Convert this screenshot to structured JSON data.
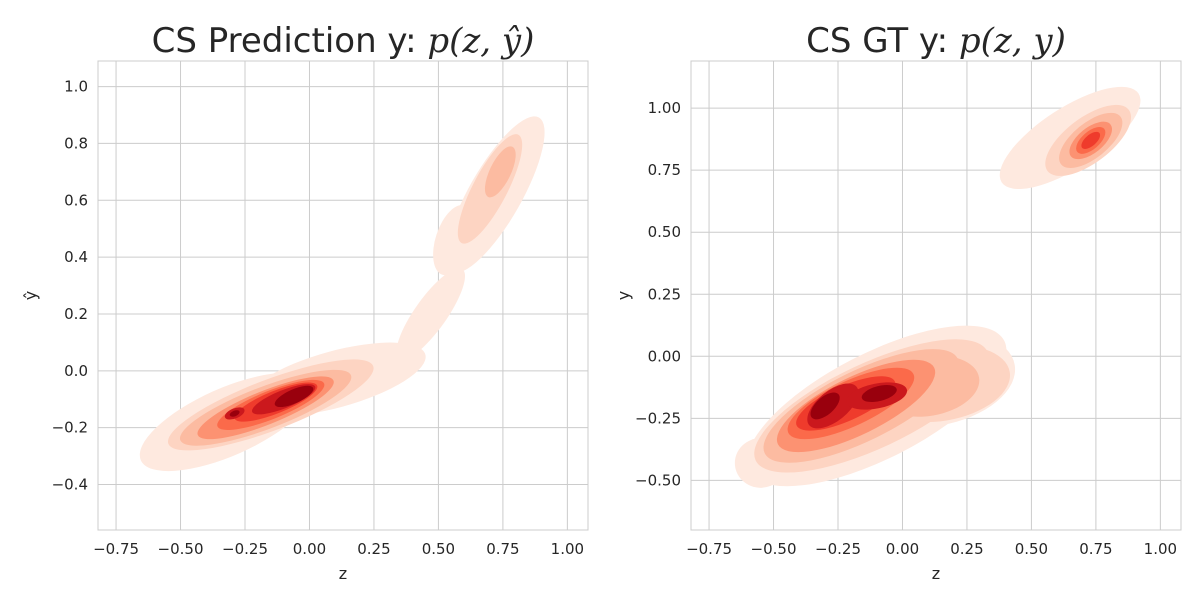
{
  "chart_data": [
    {
      "type": "kde-contour",
      "title_prefix": "CS Prediction y: ",
      "title_math_base": "p(z, y",
      "title_math_hat": "̂",
      "title_math_close": ")",
      "xlabel": "z",
      "ylabel": "ŷ",
      "xlim": [
        -0.82,
        1.08
      ],
      "ylim": [
        -0.56,
        1.09
      ],
      "xticks": [
        -0.75,
        -0.5,
        -0.25,
        0.0,
        0.25,
        0.5,
        0.75,
        1.0
      ],
      "xtick_labels": [
        "−0.75",
        "−0.50",
        "−0.25",
        "0.00",
        "0.25",
        "0.50",
        "0.75",
        "1.00"
      ],
      "yticks": [
        -0.4,
        -0.2,
        0.0,
        0.2,
        0.4,
        0.6,
        0.8,
        1.0
      ],
      "ytick_labels": [
        "−0.4",
        "−0.2",
        "0.0",
        "0.2",
        "0.4",
        "0.6",
        "0.8",
        "1.0"
      ],
      "levels": [
        {
          "name": "level-1",
          "color": "#fee9df",
          "ellipses": [
            {
              "cx": -0.32,
              "cy": -0.18,
              "rx": 0.36,
              "ry": 0.12,
              "angle": 22
            },
            {
              "cx": 0.1,
              "cy": -0.03,
              "rx": 0.36,
              "ry": 0.1,
              "angle": 14
            },
            {
              "cx": 0.47,
              "cy": 0.2,
              "rx": 0.2,
              "ry": 0.06,
              "angle": 52
            },
            {
              "cx": 0.72,
              "cy": 0.62,
              "rx": 0.32,
              "ry": 0.1,
              "angle": 58
            },
            {
              "cx": 0.56,
              "cy": 0.46,
              "rx": 0.13,
              "ry": 0.07,
              "angle": 70
            }
          ]
        },
        {
          "name": "level-2",
          "color": "#fdd4c2",
          "ellipses": [
            {
              "cx": -0.15,
              "cy": -0.12,
              "rx": 0.42,
              "ry": 0.09,
              "angle": 19
            },
            {
              "cx": 0.7,
              "cy": 0.64,
              "rx": 0.22,
              "ry": 0.065,
              "angle": 60
            }
          ]
        },
        {
          "name": "level-3",
          "color": "#fcbba1",
          "ellipses": [
            {
              "cx": -0.17,
              "cy": -0.13,
              "rx": 0.35,
              "ry": 0.075,
              "angle": 19
            },
            {
              "cx": 0.74,
              "cy": 0.7,
              "rx": 0.1,
              "ry": 0.04,
              "angle": 62
            }
          ]
        },
        {
          "name": "level-4",
          "color": "#fc9272",
          "ellipses": [
            {
              "cx": -0.17,
              "cy": -0.13,
              "rx": 0.28,
              "ry": 0.06,
              "angle": 20
            }
          ]
        },
        {
          "name": "level-5",
          "color": "#fb6a4a",
          "ellipses": [
            {
              "cx": -0.15,
              "cy": -0.12,
              "rx": 0.22,
              "ry": 0.05,
              "angle": 20
            }
          ]
        },
        {
          "name": "level-6",
          "color": "#ef3b2c",
          "ellipses": [
            {
              "cx": -0.13,
              "cy": -0.11,
              "rx": 0.17,
              "ry": 0.04,
              "angle": 20
            }
          ]
        },
        {
          "name": "level-7",
          "color": "#cb181d",
          "ellipses": [
            {
              "cx": -0.1,
              "cy": -0.1,
              "rx": 0.13,
              "ry": 0.032,
              "angle": 20
            },
            {
              "cx": -0.29,
              "cy": -0.15,
              "rx": 0.04,
              "ry": 0.018,
              "angle": 20
            }
          ]
        },
        {
          "name": "level-8",
          "color": "#99000d",
          "ellipses": [
            {
              "cx": -0.06,
              "cy": -0.09,
              "rx": 0.08,
              "ry": 0.025,
              "angle": 22
            },
            {
              "cx": -0.29,
              "cy": -0.15,
              "rx": 0.02,
              "ry": 0.01,
              "angle": 20
            }
          ]
        }
      ]
    },
    {
      "type": "kde-contour",
      "title_prefix": "CS GT y: ",
      "title_math_base": "p(z, y)",
      "title_math_hat": "",
      "title_math_close": "",
      "xlabel": "z",
      "ylabel": "y",
      "xlim": [
        -0.82,
        1.08
      ],
      "ylim": [
        -0.7,
        1.19
      ],
      "xticks": [
        -0.75,
        -0.5,
        -0.25,
        0.0,
        0.25,
        0.5,
        0.75,
        1.0
      ],
      "xtick_labels": [
        "−0.75",
        "−0.50",
        "−0.25",
        "0.00",
        "0.25",
        "0.50",
        "0.75",
        "1.00"
      ],
      "yticks": [
        -0.5,
        -0.25,
        0.0,
        0.25,
        0.5,
        0.75,
        1.0
      ],
      "ytick_labels": [
        "−0.50",
        "−0.25",
        "0.00",
        "0.25",
        "0.50",
        "0.75",
        "1.00"
      ],
      "levels": [
        {
          "name": "level-1",
          "color": "#fee9df",
          "ellipses": [
            {
              "cx": -0.1,
              "cy": -0.2,
              "rx": 0.56,
              "ry": 0.21,
              "angle": 28
            },
            {
              "cx": 0.12,
              "cy": -0.09,
              "rx": 0.32,
              "ry": 0.19,
              "angle": 10
            },
            {
              "cx": -0.55,
              "cy": -0.43,
              "rx": 0.1,
              "ry": 0.1,
              "angle": 0
            },
            {
              "cx": 0.65,
              "cy": 0.88,
              "rx": 0.32,
              "ry": 0.12,
              "angle": 34
            }
          ]
        },
        {
          "name": "level-2",
          "color": "#fdd4c2",
          "ellipses": [
            {
              "cx": -0.12,
              "cy": -0.2,
              "rx": 0.5,
              "ry": 0.17,
              "angle": 26
            },
            {
              "cx": 0.15,
              "cy": -0.11,
              "rx": 0.27,
              "ry": 0.15,
              "angle": 10
            },
            {
              "cx": 0.72,
              "cy": 0.87,
              "rx": 0.2,
              "ry": 0.09,
              "angle": 38
            }
          ]
        },
        {
          "name": "level-3",
          "color": "#fcbba1",
          "ellipses": [
            {
              "cx": -0.16,
              "cy": -0.2,
              "rx": 0.42,
              "ry": 0.14,
              "angle": 27
            },
            {
              "cx": 0.1,
              "cy": -0.12,
              "rx": 0.2,
              "ry": 0.12,
              "angle": 10
            },
            {
              "cx": 0.73,
              "cy": 0.87,
              "rx": 0.15,
              "ry": 0.07,
              "angle": 40
            }
          ]
        },
        {
          "name": "level-4",
          "color": "#fc9272",
          "ellipses": [
            {
              "cx": -0.18,
              "cy": -0.2,
              "rx": 0.34,
              "ry": 0.115,
              "angle": 27
            },
            {
              "cx": 0.73,
              "cy": 0.87,
              "rx": 0.1,
              "ry": 0.05,
              "angle": 40
            }
          ]
        },
        {
          "name": "level-5",
          "color": "#fb6a4a",
          "ellipses": [
            {
              "cx": -0.2,
              "cy": -0.19,
              "rx": 0.27,
              "ry": 0.09,
              "angle": 26
            },
            {
              "cx": 0.73,
              "cy": 0.87,
              "rx": 0.07,
              "ry": 0.035,
              "angle": 42
            }
          ]
        },
        {
          "name": "level-6",
          "color": "#ef3b2c",
          "ellipses": [
            {
              "cx": -0.22,
              "cy": -0.19,
              "rx": 0.21,
              "ry": 0.07,
              "angle": 25
            },
            {
              "cx": 0.73,
              "cy": 0.87,
              "rx": 0.045,
              "ry": 0.022,
              "angle": 42
            }
          ]
        },
        {
          "name": "level-7",
          "color": "#cb181d",
          "ellipses": [
            {
              "cx": -0.27,
              "cy": -0.2,
              "rx": 0.12,
              "ry": 0.06,
              "angle": 40
            },
            {
              "cx": -0.1,
              "cy": -0.16,
              "rx": 0.12,
              "ry": 0.05,
              "angle": 12
            }
          ]
        },
        {
          "name": "level-8",
          "color": "#99000d",
          "ellipses": [
            {
              "cx": -0.3,
              "cy": -0.2,
              "rx": 0.07,
              "ry": 0.035,
              "angle": 42
            },
            {
              "cx": -0.09,
              "cy": -0.15,
              "rx": 0.07,
              "ry": 0.03,
              "angle": 15
            }
          ]
        }
      ]
    }
  ]
}
